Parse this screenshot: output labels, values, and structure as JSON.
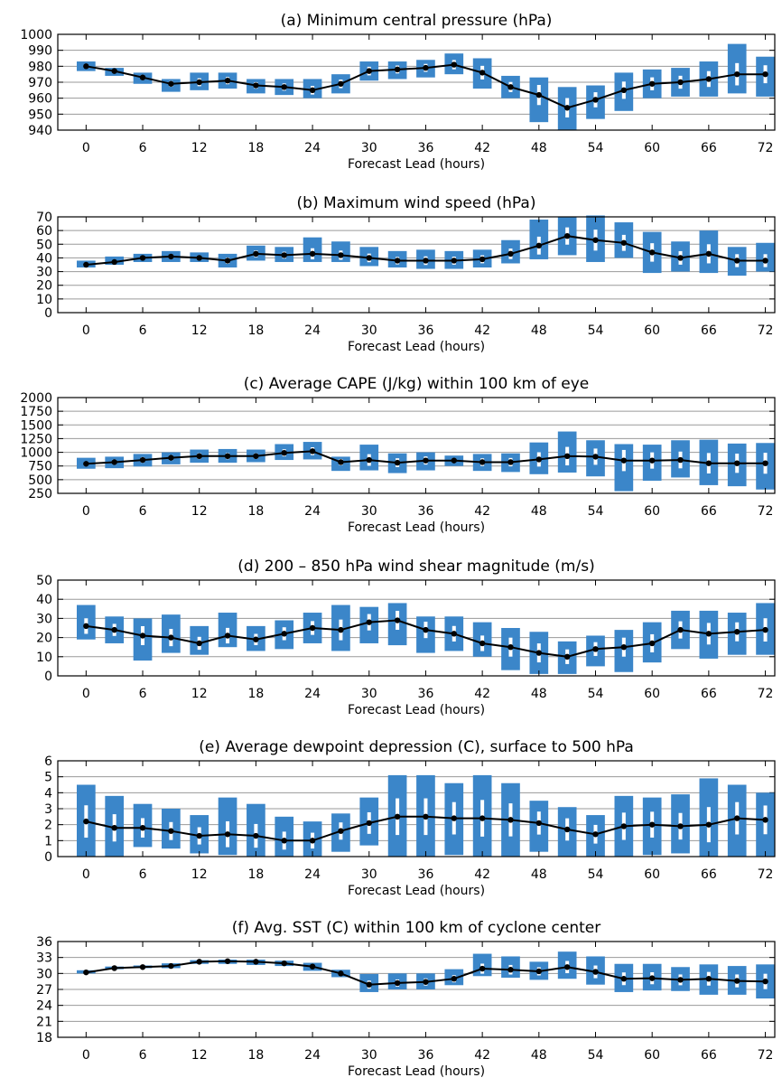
{
  "colors": {
    "box": "#3b86c9",
    "line": "#000000",
    "grid": "#9a9a9a",
    "median": "#ffffff"
  },
  "chart_data": [
    {
      "type": "box",
      "title": "(a) Minimum central pressure (hPa)",
      "xlabel": "Forecast Lead (hours)",
      "ylabel": "",
      "xlim": [
        -3,
        73
      ],
      "ylim": [
        940,
        1000
      ],
      "xticks": [
        0,
        6,
        12,
        18,
        24,
        30,
        36,
        42,
        48,
        54,
        60,
        66,
        72
      ],
      "yticks": [
        940,
        950,
        960,
        970,
        980,
        990,
        1000
      ],
      "grid": true,
      "x": [
        0,
        3,
        6,
        9,
        12,
        15,
        18,
        21,
        24,
        27,
        30,
        33,
        36,
        39,
        42,
        45,
        48,
        51,
        54,
        57,
        60,
        63,
        66,
        69,
        72
      ],
      "mean": [
        980,
        977,
        973,
        969,
        970,
        971,
        968,
        967,
        965,
        969,
        977,
        978,
        979,
        981,
        976,
        967,
        962,
        954,
        959,
        965,
        969,
        970,
        972,
        975,
        975
      ],
      "low": [
        977,
        974,
        969,
        964,
        965,
        966,
        963,
        962,
        960,
        963,
        971,
        972,
        973,
        975,
        966,
        960,
        945,
        940,
        947,
        952,
        960,
        961,
        961,
        963,
        961
      ],
      "high": [
        983,
        979,
        976,
        972,
        976,
        976,
        972,
        972,
        972,
        975,
        983,
        983,
        984,
        988,
        985,
        974,
        973,
        967,
        968,
        976,
        978,
        979,
        983,
        994,
        986
      ]
    },
    {
      "type": "box",
      "title": "(b) Maximum wind speed (hPa)",
      "xlabel": "Forecast Lead (hours)",
      "ylabel": "",
      "xlim": [
        -3,
        73
      ],
      "ylim": [
        0,
        70
      ],
      "xticks": [
        0,
        6,
        12,
        18,
        24,
        30,
        36,
        42,
        48,
        54,
        60,
        66,
        72
      ],
      "yticks": [
        0,
        10,
        20,
        30,
        40,
        50,
        60,
        70
      ],
      "grid": true,
      "x": [
        0,
        3,
        6,
        9,
        12,
        15,
        18,
        21,
        24,
        27,
        30,
        33,
        36,
        39,
        42,
        45,
        48,
        51,
        54,
        57,
        60,
        63,
        66,
        69,
        72
      ],
      "mean": [
        35,
        37,
        40,
        41,
        40,
        38,
        43,
        42,
        43,
        42,
        40,
        38,
        38,
        38,
        39,
        43,
        49,
        56,
        53,
        51,
        44,
        40,
        43,
        38,
        38
      ],
      "low": [
        33,
        35,
        37,
        37,
        37,
        33,
        38,
        37,
        37,
        37,
        34,
        33,
        32,
        32,
        33,
        36,
        39,
        42,
        37,
        40,
        29,
        30,
        29,
        27,
        30
      ],
      "high": [
        38,
        41,
        43,
        45,
        44,
        43,
        49,
        48,
        55,
        52,
        48,
        45,
        46,
        45,
        46,
        53,
        68,
        70,
        71,
        66,
        59,
        52,
        60,
        48,
        51
      ]
    },
    {
      "type": "box",
      "title": "(c) Average CAPE (J/kg) within 100 km of eye",
      "xlabel": "Forecast Lead (hours)",
      "ylabel": "",
      "xlim": [
        -3,
        73
      ],
      "ylim": [
        250,
        2000
      ],
      "xticks": [
        0,
        6,
        12,
        18,
        24,
        30,
        36,
        42,
        48,
        54,
        60,
        66,
        72
      ],
      "yticks": [
        250,
        500,
        750,
        1000,
        1250,
        1500,
        1750,
        2000
      ],
      "grid": true,
      "x": [
        0,
        3,
        6,
        9,
        12,
        15,
        18,
        21,
        24,
        27,
        30,
        33,
        36,
        39,
        42,
        45,
        48,
        51,
        54,
        57,
        60,
        63,
        66,
        69,
        72
      ],
      "mean": [
        790,
        820,
        860,
        900,
        930,
        930,
        930,
        990,
        1020,
        820,
        860,
        810,
        850,
        850,
        820,
        820,
        870,
        930,
        920,
        850,
        850,
        860,
        800,
        800,
        800
      ],
      "low": [
        700,
        710,
        740,
        780,
        810,
        810,
        820,
        860,
        870,
        660,
        670,
        620,
        670,
        750,
        660,
        640,
        600,
        630,
        560,
        290,
        480,
        540,
        400,
        380,
        320
      ],
      "high": [
        900,
        920,
        970,
        1000,
        1050,
        1060,
        1050,
        1150,
        1190,
        920,
        1140,
        980,
        1000,
        940,
        970,
        980,
        1180,
        1380,
        1220,
        1150,
        1140,
        1220,
        1230,
        1160,
        1170
      ]
    },
    {
      "type": "box",
      "title": "(d) 200 – 850 hPa wind shear magnitude (m/s)",
      "xlabel": "Forecast Lead (hours)",
      "ylabel": "",
      "xlim": [
        -3,
        73
      ],
      "ylim": [
        0,
        50
      ],
      "xticks": [
        0,
        6,
        12,
        18,
        24,
        30,
        36,
        42,
        48,
        54,
        60,
        66,
        72
      ],
      "yticks": [
        0,
        10,
        20,
        30,
        40,
        50
      ],
      "grid": true,
      "x": [
        0,
        3,
        6,
        9,
        12,
        15,
        18,
        21,
        24,
        27,
        30,
        33,
        36,
        39,
        42,
        45,
        48,
        51,
        54,
        57,
        60,
        63,
        66,
        69,
        72
      ],
      "mean": [
        26,
        24,
        21,
        20,
        17,
        21,
        19,
        22,
        25,
        24,
        28,
        29,
        24,
        22,
        17,
        15,
        12,
        10,
        14,
        15,
        17,
        24,
        22,
        23,
        24
      ],
      "low": [
        19,
        17,
        8,
        12,
        11,
        15,
        13,
        14,
        17,
        13,
        17,
        16,
        12,
        13,
        10,
        3,
        1,
        1,
        5,
        2,
        7,
        14,
        9,
        11,
        11
      ],
      "high": [
        37,
        31,
        30,
        32,
        26,
        33,
        26,
        29,
        33,
        37,
        36,
        38,
        31,
        31,
        28,
        25,
        23,
        18,
        21,
        24,
        28,
        34,
        34,
        33,
        38
      ]
    },
    {
      "type": "box",
      "title": "(e) Average dewpoint depression (C), surface to 500 hPa",
      "xlabel": "Forecast Lead (hours)",
      "ylabel": "",
      "xlim": [
        -3,
        73
      ],
      "ylim": [
        0,
        6
      ],
      "xticks": [
        0,
        6,
        12,
        18,
        24,
        30,
        36,
        42,
        48,
        54,
        60,
        66,
        72
      ],
      "yticks": [
        0,
        1,
        2,
        3,
        4,
        5,
        6
      ],
      "grid": true,
      "x": [
        0,
        3,
        6,
        9,
        12,
        15,
        18,
        21,
        24,
        27,
        30,
        33,
        36,
        39,
        42,
        45,
        48,
        51,
        54,
        57,
        60,
        63,
        66,
        69,
        72
      ],
      "mean": [
        2.2,
        1.8,
        1.8,
        1.6,
        1.3,
        1.4,
        1.3,
        1.0,
        1.0,
        1.6,
        2.1,
        2.5,
        2.5,
        2.4,
        2.4,
        2.3,
        2.1,
        1.7,
        1.4,
        1.9,
        2.0,
        1.9,
        2.0,
        2.4,
        2.3
      ],
      "low": [
        0.0,
        0.0,
        0.6,
        0.5,
        0.2,
        0.1,
        0.0,
        0.0,
        0.0,
        0.3,
        0.7,
        0.0,
        0.0,
        0.1,
        0.0,
        0.0,
        0.3,
        0.0,
        0.0,
        0.0,
        0.1,
        0.2,
        0.0,
        0.0,
        0.0
      ],
      "high": [
        4.5,
        3.8,
        3.3,
        3.0,
        2.6,
        3.7,
        3.3,
        2.5,
        2.2,
        2.7,
        3.7,
        5.1,
        5.1,
        4.6,
        5.1,
        4.6,
        3.5,
        3.1,
        2.6,
        3.8,
        3.7,
        3.9,
        4.9,
        4.5,
        4.0
      ]
    },
    {
      "type": "box",
      "title": "(f) Avg. SST (C) within 100 km of cyclone center",
      "xlabel": "Forecast Lead (hours)",
      "ylabel": "",
      "xlim": [
        -3,
        73
      ],
      "ylim": [
        18,
        36
      ],
      "xticks": [
        0,
        6,
        12,
        18,
        24,
        30,
        36,
        42,
        48,
        54,
        60,
        66,
        72
      ],
      "yticks": [
        18,
        21,
        24,
        27,
        30,
        33,
        36
      ],
      "grid": true,
      "x": [
        0,
        3,
        6,
        9,
        12,
        15,
        18,
        21,
        24,
        27,
        30,
        33,
        36,
        39,
        42,
        45,
        48,
        51,
        54,
        57,
        60,
        63,
        66,
        69,
        72
      ],
      "mean": [
        30.2,
        31.0,
        31.2,
        31.4,
        32.2,
        32.3,
        32.2,
        31.9,
        31.3,
        30.0,
        27.9,
        28.2,
        28.4,
        29.0,
        30.9,
        30.7,
        30.4,
        31.2,
        30.3,
        29.0,
        29.1,
        28.8,
        29.0,
        28.6,
        28.5
      ],
      "low": [
        30.0,
        30.8,
        31.0,
        31.0,
        31.8,
        31.8,
        31.6,
        31.4,
        30.5,
        29.3,
        26.5,
        27.0,
        27.0,
        27.8,
        29.5,
        29.2,
        28.8,
        29.0,
        27.9,
        26.5,
        26.8,
        26.7,
        26.0,
        26.0,
        25.3
      ],
      "high": [
        30.6,
        31.3,
        31.5,
        31.9,
        32.5,
        32.6,
        32.6,
        32.4,
        32.0,
        30.7,
        29.9,
        30.0,
        30.0,
        30.8,
        33.7,
        33.2,
        32.2,
        34.1,
        33.2,
        31.8,
        31.8,
        31.2,
        31.7,
        31.4,
        31.7
      ]
    }
  ]
}
